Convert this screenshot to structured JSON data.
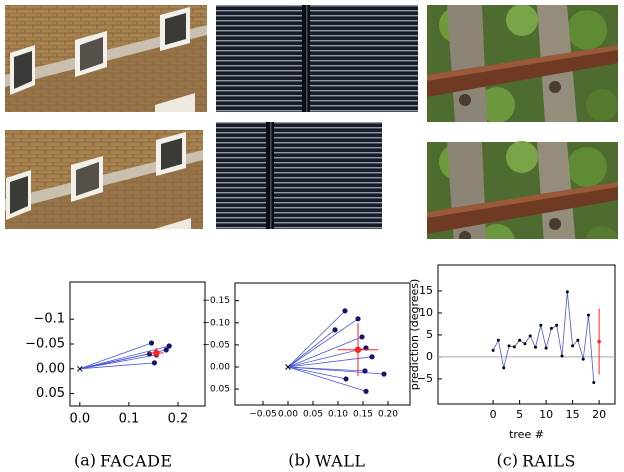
{
  "chart_data": [
    {
      "type": "scatter",
      "caption": {
        "label": "(a)",
        "name": "FACADE"
      },
      "x": [
        0.146,
        0.142,
        0.156,
        0.176,
        0.182,
        0.152
      ],
      "values": [
        -0.052,
        -0.03,
        -0.028,
        -0.038,
        -0.046,
        -0.012
      ],
      "origin": {
        "x": 0,
        "y": 0
      },
      "mean": {
        "x": 0.156,
        "y": -0.032,
        "xerr": 0.015,
        "yerr": 0.01
      },
      "color": "#141470",
      "line_color": "#4a58d8",
      "mean_color": "#ff2020",
      "xlim": [
        -0.02,
        0.255
      ],
      "ylim": [
        0.075,
        -0.175
      ],
      "xticks": [
        {
          "value": 0,
          "label": "0.0"
        },
        0.1,
        0.2
      ],
      "yticks": [
        {
          "value": -0.1,
          "label": "−0.1"
        },
        {
          "value": -0.05,
          "label": "−0.05"
        },
        {
          "value": 0,
          "label": "0.00"
        },
        0.05
      ]
    },
    {
      "type": "scatter",
      "caption": {
        "label": "(b)",
        "name": "WALL"
      },
      "x": [
        0.114,
        0.14,
        0.094,
        0.148,
        0.156,
        0.168,
        0.192,
        0.154,
        0.116,
        0.156
      ],
      "values": [
        -0.127,
        -0.109,
        -0.084,
        -0.068,
        -0.043,
        -0.023,
        0.016,
        0.009,
        0.027,
        0.055
      ],
      "origin": {
        "x": 0,
        "y": 0
      },
      "mean": {
        "x": 0.14,
        "y": -0.039,
        "xerr": 0.04,
        "yerr": 0.06
      },
      "color": "#141470",
      "line_color": "#4a58d8",
      "mean_color": "#ff2020",
      "xlim": [
        -0.106,
        0.244
      ],
      "ylim": [
        0.086,
        -0.19
      ],
      "xticks": [
        {
          "value": -0.05,
          "label": "−0.05"
        },
        {
          "value": 0,
          "label": "0.00"
        },
        0.05,
        {
          "value": 0.1,
          "label": "0.10"
        },
        0.15,
        {
          "value": 0.2,
          "label": "0.20"
        }
      ],
      "yticks": [
        {
          "value": -0.15,
          "label": "−0.15"
        },
        {
          "value": -0.1,
          "label": "−0.10"
        },
        {
          "value": -0.05,
          "label": "−0.05"
        },
        {
          "value": 0,
          "label": "0.00"
        },
        0.05
      ]
    },
    {
      "type": "line",
      "caption": {
        "label": "(c)",
        "name": "RAILS"
      },
      "xlabel": "tree #",
      "ylabel": "prediction (degrees)",
      "x": [
        0,
        1,
        2,
        3,
        4,
        5,
        6,
        7,
        8,
        9,
        10,
        11,
        12,
        13,
        14,
        15,
        16,
        17,
        18,
        19
      ],
      "values": [
        1.5,
        3.8,
        -2.5,
        2.5,
        2.3,
        3.8,
        3,
        4.8,
        2.2,
        7.2,
        2,
        6.5,
        7.2,
        0.2,
        14.8,
        2.5,
        3.8,
        -0.5,
        9.5,
        -5.8
      ],
      "mean": {
        "x": 20,
        "y": 3.5,
        "yerr": 7.5
      },
      "hline": 0,
      "color": "#000000",
      "line_color": "#4a58d8",
      "mean_color": "#ff2020",
      "hline_color": "#aaaaaa",
      "xlim": [
        -10.4,
        23
      ],
      "ylim": [
        -10.7,
        20.9
      ],
      "xticks": [
        0,
        5,
        10,
        15,
        20
      ],
      "yticks": [
        {
          "value": -5,
          "label": "−5"
        },
        0,
        5,
        10,
        15
      ]
    }
  ]
}
